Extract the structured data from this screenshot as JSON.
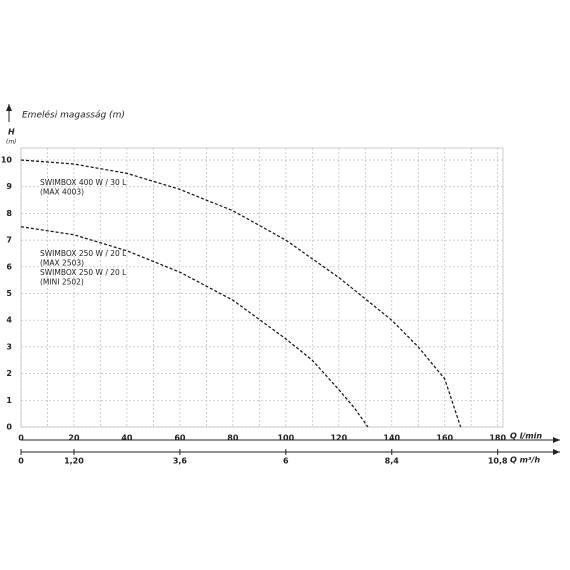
{
  "chart_data": {
    "type": "line",
    "title": "Emelési magasság (m)",
    "y_label": "H",
    "y_unit": "(m)",
    "x_label": "Q l/min",
    "x2_label": "Q m³/h",
    "xlim": [
      0,
      182
    ],
    "xticks": [
      0,
      20,
      40,
      60,
      80,
      100,
      120,
      140,
      160,
      180
    ],
    "x2lim": [
      0,
      10.92
    ],
    "x2ticks": [
      0,
      {
        "value": 1.2,
        "label": "1,20"
      },
      {
        "value": 3.6,
        "label": "3,6"
      },
      6,
      {
        "value": 8.4,
        "label": "8,4"
      },
      {
        "value": 10.8,
        "label": "10,8"
      }
    ],
    "ylim": [
      0,
      10.45
    ],
    "yticks": [
      0,
      1,
      2,
      3,
      4,
      5,
      6,
      7,
      8,
      9,
      10
    ],
    "grid": true,
    "series": [
      {
        "label_lines": [
          "SWIMBOX 400 W / 30 L",
          "(MAX 4003)"
        ],
        "color": "#111111",
        "x": [
          0,
          20,
          40,
          60,
          80,
          100,
          120,
          140,
          150,
          160,
          166
        ],
        "values": [
          10,
          9.85,
          9.5,
          8.9,
          8.1,
          7.0,
          5.6,
          4.0,
          3.0,
          1.8,
          0
        ]
      },
      {
        "label_lines": [
          "SWIMBOX 250 W / 20 L",
          "(MAX 2503)",
          "SWIMBOX 250 W / 20 L",
          "(MINI 2502)"
        ],
        "color": "#111111",
        "x": [
          0,
          20,
          40,
          60,
          80,
          100,
          110,
          120,
          126,
          131
        ],
        "values": [
          7.5,
          7.2,
          6.6,
          5.8,
          4.75,
          3.3,
          2.5,
          1.4,
          0.7,
          0
        ]
      }
    ]
  }
}
